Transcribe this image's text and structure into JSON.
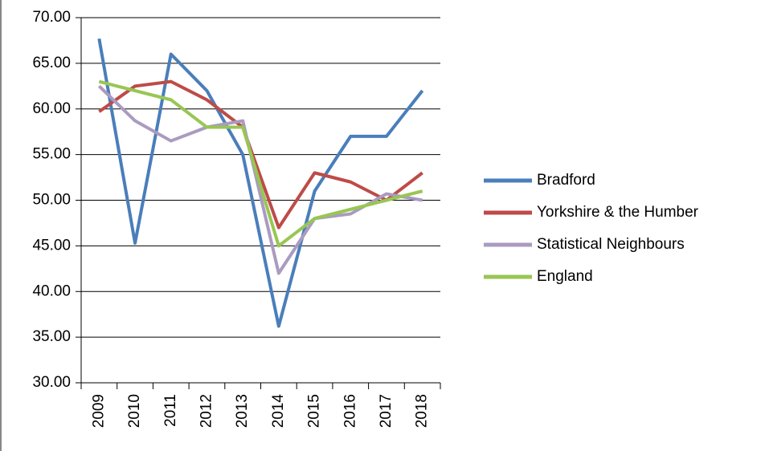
{
  "chart_data": {
    "type": "line",
    "categories": [
      "2009",
      "2010",
      "2011",
      "2012",
      "2013",
      "2014",
      "2015",
      "2016",
      "2017",
      "2018"
    ],
    "series": [
      {
        "name": "Bradford",
        "color": "#4a7ebb",
        "values": [
          67.7,
          45.3,
          66,
          62,
          55,
          36.2,
          51,
          57,
          57,
          62
        ]
      },
      {
        "name": "Yorkshire & the Humber",
        "color": "#be4b48",
        "values": [
          59.7,
          62.5,
          63,
          61,
          58,
          47,
          53,
          52,
          50,
          53
        ]
      },
      {
        "name": "Statistical Neighbours",
        "color": "#aa9bc0",
        "values": [
          62.5,
          58.7,
          56.5,
          58,
          58.7,
          42,
          48,
          48.5,
          50.7,
          50
        ]
      },
      {
        "name": "England",
        "color": "#98c654",
        "values": [
          63,
          62,
          61,
          58,
          58,
          45,
          48,
          49,
          50,
          51
        ]
      }
    ],
    "ylim": [
      30,
      70
    ],
    "yticks": [
      {
        "value": 30,
        "label": "30.00"
      },
      {
        "value": 35,
        "label": "35.00"
      },
      {
        "value": 40,
        "label": "40.00"
      },
      {
        "value": 45,
        "label": "45.00"
      },
      {
        "value": 50,
        "label": "50.00"
      },
      {
        "value": 55,
        "label": "55.00"
      },
      {
        "value": 60,
        "label": "60.00"
      },
      {
        "value": 65,
        "label": "65.00"
      },
      {
        "value": 70,
        "label": "70.00"
      }
    ],
    "grid": true,
    "legend": "right"
  }
}
